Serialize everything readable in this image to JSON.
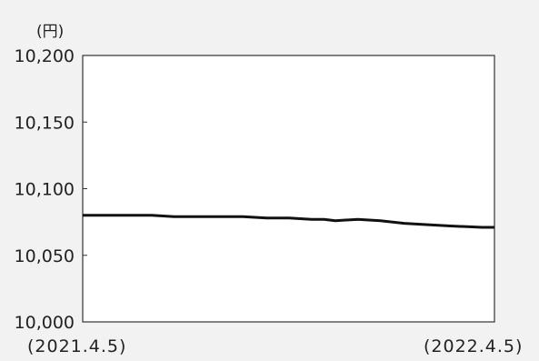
{
  "chart_data": {
    "type": "line",
    "y_unit_label": "(円)",
    "ylim": [
      10000,
      10200
    ],
    "y_ticks": [
      10000,
      10050,
      10100,
      10150,
      10200
    ],
    "y_tick_labels": [
      "10,000",
      "10,050",
      "10,100",
      "10,150",
      "10,200"
    ],
    "x_tick_labels": [
      "(2021.4.5)",
      "(2022.4.5)"
    ],
    "x_range": [
      "2021-04-05",
      "2022-04-05"
    ],
    "grid": false,
    "line_color": "#111111",
    "series": [
      {
        "x": [
          "2021-04-05",
          "2021-05-05",
          "2021-06-05",
          "2021-06-25",
          "2021-07-15",
          "2021-08-05",
          "2021-08-25",
          "2021-09-15",
          "2021-10-05",
          "2021-10-25",
          "2021-11-05",
          "2021-11-15",
          "2021-12-05",
          "2021-12-25",
          "2022-01-15",
          "2022-02-05",
          "2022-02-25",
          "2022-03-25",
          "2022-04-05"
        ],
        "values": [
          10080,
          10080,
          10080,
          10079,
          10079,
          10079,
          10079,
          10078,
          10078,
          10077,
          10077,
          10076,
          10077,
          10076,
          10074,
          10073,
          10072,
          10071,
          10071
        ]
      }
    ]
  }
}
